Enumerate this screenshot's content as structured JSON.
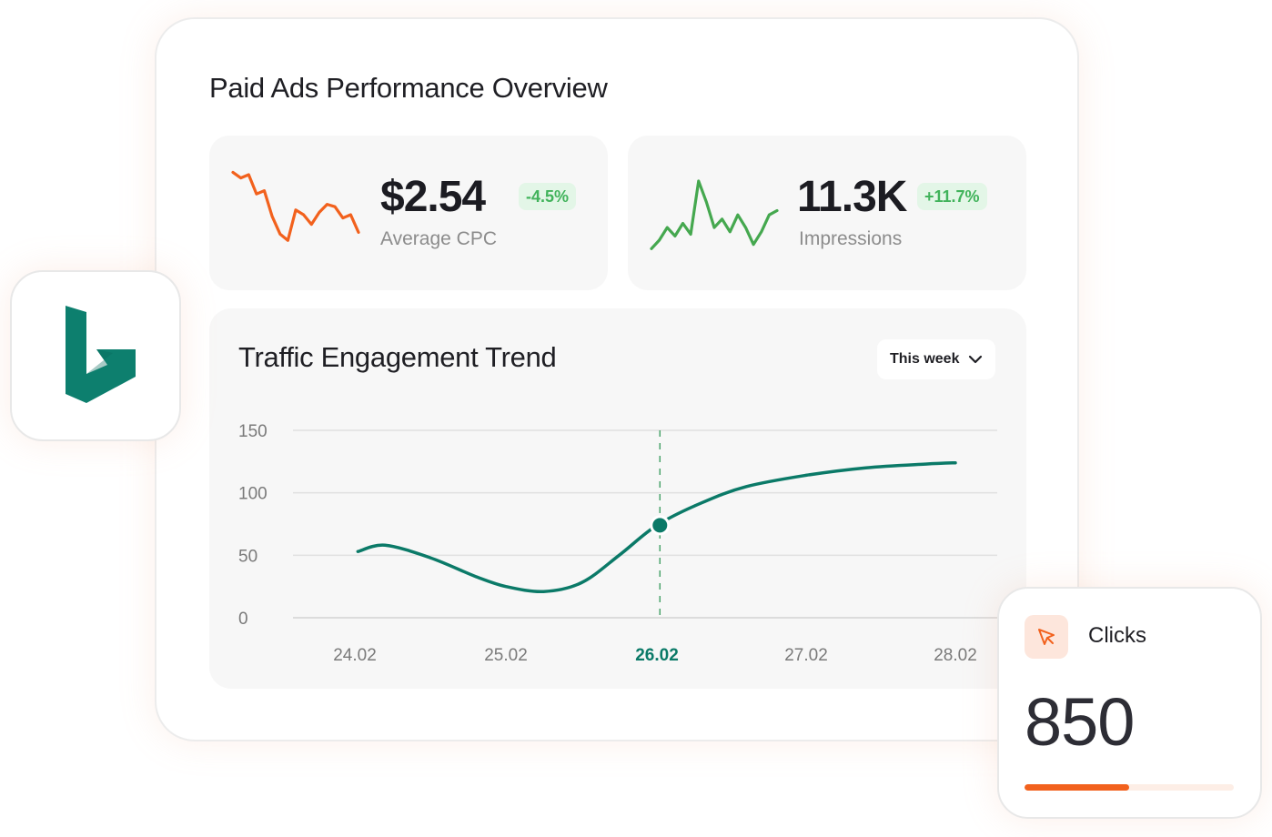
{
  "page": {
    "title": "Paid Ads Performance Overview"
  },
  "kpis": {
    "cpc": {
      "value": "$2.54",
      "change": "-4.5%",
      "label": "Average CPC",
      "color": "#f2611d",
      "sparkline": [
        95,
        88,
        92,
        68,
        72,
        40,
        18,
        10,
        48,
        42,
        30,
        45,
        55,
        52,
        38,
        42,
        20
      ]
    },
    "impressions": {
      "value": "11.3K",
      "change": "+11.7%",
      "label": "Impressions",
      "color": "#45a84f",
      "sparkline": [
        5,
        15,
        30,
        20,
        35,
        22,
        85,
        60,
        30,
        40,
        25,
        45,
        30,
        10,
        25,
        45,
        50
      ]
    },
    "badge_color": "#41b35b"
  },
  "traffic": {
    "title": "Traffic Engagement Trend",
    "range": "This week",
    "chevron_icon": "chevron-down-icon"
  },
  "chart_data": {
    "type": "line",
    "title": "Traffic Engagement Trend",
    "xlabel": "",
    "ylabel": "",
    "ylim": [
      0,
      150
    ],
    "yticks": [
      0,
      50,
      100,
      150
    ],
    "categories": [
      "24.02",
      "25.02",
      "26.02",
      "27.02",
      "28.02"
    ],
    "highlight_category": "26.02",
    "series": [
      {
        "x": [
          "24.02",
          "24.2",
          "24.5",
          "24.8",
          "25.0",
          "25.25",
          "25.5",
          "25.75",
          "26.0",
          "26.3",
          "26.6",
          "27.0",
          "27.4",
          "27.8",
          "28.0"
        ],
        "values": [
          53,
          58,
          48,
          33,
          25,
          21,
          28,
          50,
          74,
          92,
          105,
          114,
          120,
          123,
          124
        ]
      }
    ],
    "highlight_point": {
      "x": "26.02",
      "y": 74
    },
    "line_color": "#0b7a68",
    "grid": true
  },
  "bing": {
    "icon": "bing-logo",
    "color": "#0d7f6e"
  },
  "clicks": {
    "label": "Clicks",
    "value": "850",
    "icon": "cursor-click-icon",
    "progress": 0.5,
    "accent": "#f2611d"
  }
}
